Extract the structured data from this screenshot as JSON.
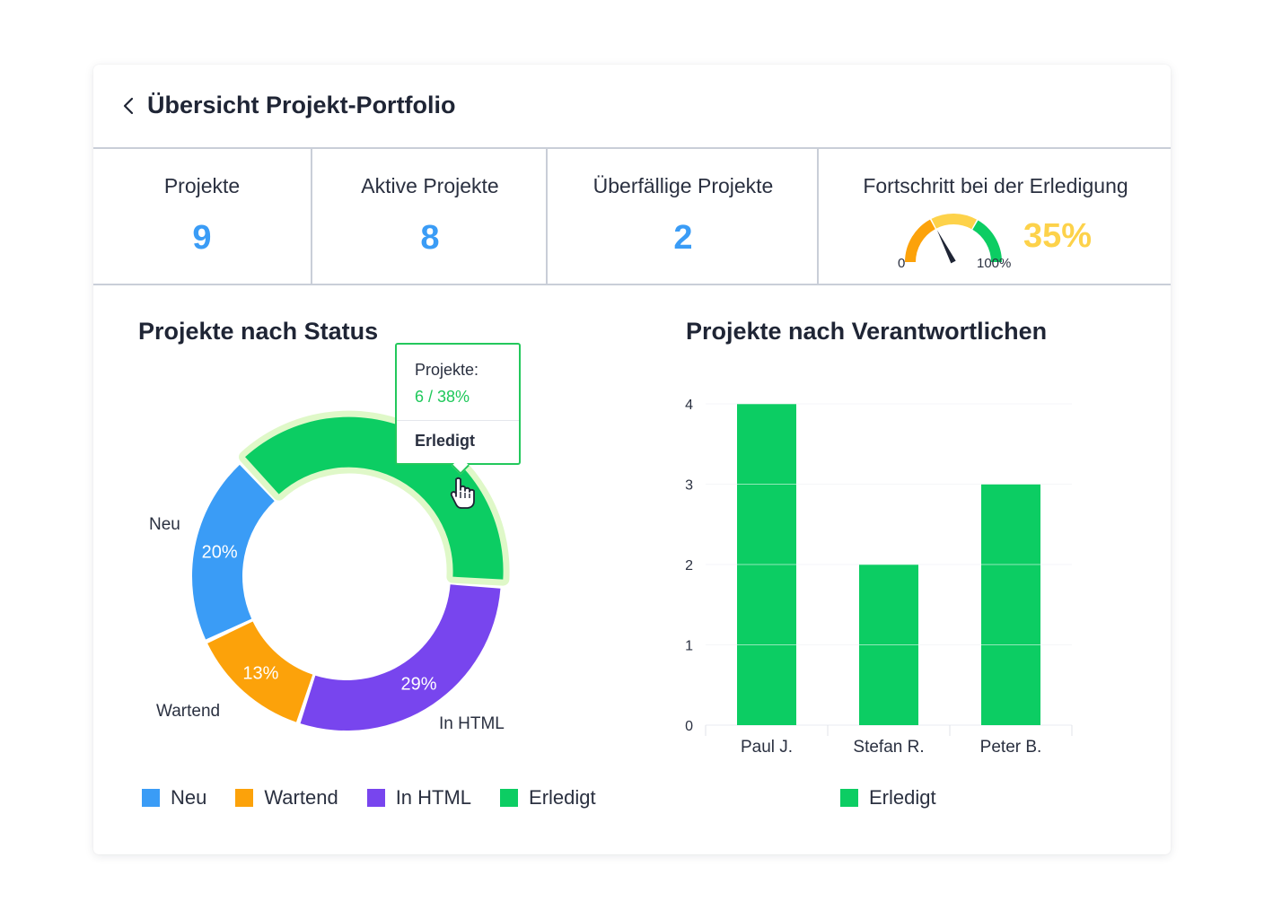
{
  "header": {
    "title": "Übersicht Projekt-Portfolio",
    "back_icon": "chevron-left-icon"
  },
  "kpis": [
    {
      "label": "Projekte",
      "value": "9"
    },
    {
      "label": "Aktive Projekte",
      "value": "8"
    },
    {
      "label": "Überfällige Projekte",
      "value": "2"
    }
  ],
  "progress": {
    "label": "Fortschritt bei der Erledigung",
    "min_label": "0",
    "max_label": "100%",
    "value_text": "35%",
    "value": 35,
    "color": "#fdd24a"
  },
  "status_chart": {
    "title": "Projekte nach Status",
    "tooltip": {
      "metric": "Projekte:",
      "value": "6 / 38%",
      "category": "Erledigt"
    },
    "legend": [
      "Neu",
      "Wartend",
      "In HTML",
      "Erledigt"
    ]
  },
  "owner_chart": {
    "title": "Projekte nach Verantwortlichen",
    "legend": [
      "Erledigt"
    ]
  },
  "colors": {
    "neu": "#3a9cf6",
    "wartend": "#fca20a",
    "in_html": "#7845ee",
    "erledigt": "#0ccd63",
    "kpi_value": "#3a9cf6",
    "accent": "#fdd24a"
  },
  "chart_data": [
    {
      "type": "pie",
      "title": "Projekte nach Status",
      "categories": [
        "Neu",
        "Wartend",
        "In HTML",
        "Erledigt"
      ],
      "values": [
        20,
        13,
        29,
        38
      ],
      "labels": [
        "20%",
        "13%",
        "29%",
        ""
      ],
      "highlighted": "Erledigt"
    },
    {
      "type": "bar",
      "title": "Projekte nach Verantwortlichen",
      "categories": [
        "Paul J.",
        "Stefan R.",
        "Peter B."
      ],
      "series": [
        {
          "name": "Erledigt",
          "values": [
            4,
            2,
            3
          ]
        }
      ],
      "yticks": [
        "0",
        "1",
        "2",
        "3",
        "4"
      ],
      "ylim": [
        0,
        4
      ],
      "grid": true
    }
  ]
}
